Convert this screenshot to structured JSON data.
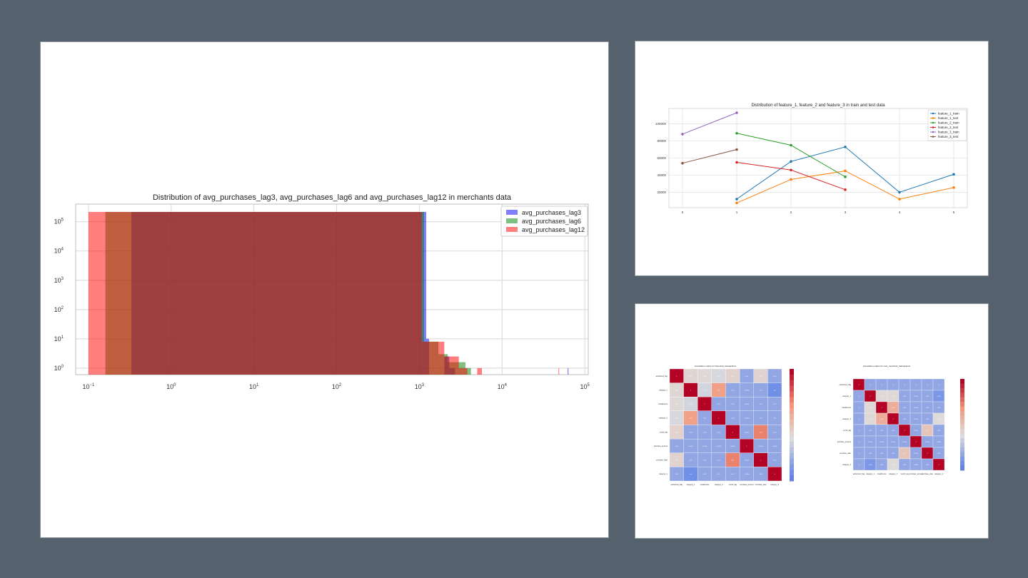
{
  "colors": {
    "background": "#56616e",
    "blue": "#1f77b4",
    "orange": "#ff7f0e",
    "green": "#2ca02c",
    "red": "#d62728",
    "purple": "#9467bd",
    "brown": "#8c564b"
  },
  "chart_data": [
    {
      "type": "histogram",
      "title": "Distribution of avg_purchases_lag3, avg_purchases_lag6 and avg_purchases_lag12 in merchants data",
      "xlabel": "",
      "ylabel": "",
      "x_scale": "log",
      "y_scale": "log",
      "xlim": [
        0.07,
        110000
      ],
      "ylim": [
        0.6,
        400000
      ],
      "x_ticks": [
        {
          "value": 0.1,
          "base": "10",
          "exp": "−1"
        },
        {
          "value": 1,
          "base": "10",
          "exp": "0"
        },
        {
          "value": 10,
          "base": "10",
          "exp": "1"
        },
        {
          "value": 100,
          "base": "10",
          "exp": "2"
        },
        {
          "value": 1000,
          "base": "10",
          "exp": "3"
        },
        {
          "value": 10000,
          "base": "10",
          "exp": "4"
        },
        {
          "value": 100000,
          "base": "10",
          "exp": "5"
        }
      ],
      "y_ticks": [
        {
          "value": 1,
          "base": "10",
          "exp": "0"
        },
        {
          "value": 10,
          "base": "10",
          "exp": "1"
        },
        {
          "value": 100,
          "base": "10",
          "exp": "2"
        },
        {
          "value": 1000,
          "base": "10",
          "exp": "3"
        },
        {
          "value": 10000,
          "base": "10",
          "exp": "4"
        },
        {
          "value": 100000,
          "base": "10",
          "exp": "5"
        }
      ],
      "grid": true,
      "legend_position": "top-right",
      "series": [
        {
          "name": "avg_purchases_lag3",
          "color": "#0000ff",
          "opacity": 0.5,
          "bins": [
            {
              "x0": 0.33,
              "x1": 1210,
              "count": 330000
            },
            {
              "x0": 1210,
              "x1": 1310,
              "count": 10
            },
            {
              "x0": 2000,
              "x1": 2300,
              "count": 2.5
            },
            {
              "x0": 2300,
              "x1": 2700,
              "count": 1
            },
            {
              "x0": 62000,
              "x1": 63500,
              "count": 1
            }
          ]
        },
        {
          "name": "avg_purchases_lag6",
          "color": "#008000",
          "opacity": 0.5,
          "bins": [
            {
              "x0": 0.16,
              "x1": 1140,
              "count": 330000
            },
            {
              "x0": 1140,
              "x1": 1700,
              "count": 8
            },
            {
              "x0": 1700,
              "x1": 2200,
              "count": 3
            },
            {
              "x0": 2200,
              "x1": 3600,
              "count": 1.6
            },
            {
              "x0": 3600,
              "x1": 4200,
              "count": 1
            }
          ]
        },
        {
          "name": "avg_purchases_lag12",
          "color": "#ff0000",
          "opacity": 0.5,
          "bins": [
            {
              "x0": 0.1,
              "x1": 1070,
              "count": 330000
            },
            {
              "x0": 1070,
              "x1": 2000,
              "count": 8
            },
            {
              "x0": 2000,
              "x1": 3000,
              "count": 2.5
            },
            {
              "x0": 3000,
              "x1": 3800,
              "count": 1
            },
            {
              "x0": 5000,
              "x1": 5700,
              "count": 1
            },
            {
              "x0": 48000,
              "x1": 49000,
              "count": 1
            }
          ]
        }
      ]
    },
    {
      "type": "line",
      "title": "Distribution of feature_1, feature_2 and feature_3 in train and test data",
      "xlabel": "",
      "ylabel": "",
      "x_ticks": [
        "0",
        "1",
        "2",
        "3",
        "4",
        "5"
      ],
      "y_ticks": [
        "20000",
        "40000",
        "60000",
        "80000",
        "100000"
      ],
      "ylim": [
        2000,
        118000
      ],
      "xlim": [
        -0.25,
        5.25
      ],
      "grid": true,
      "legend_position": "top-right",
      "series": [
        {
          "name": "feature_1_train",
          "color": "#1f77b4",
          "x": [
            1,
            2,
            3,
            4,
            5
          ],
          "y": [
            12000,
            56000,
            73000,
            20000,
            41000
          ]
        },
        {
          "name": "feature_1_test",
          "color": "#ff7f0e",
          "x": [
            1,
            2,
            3,
            4,
            5
          ],
          "y": [
            7500,
            35000,
            45000,
            12000,
            25500
          ]
        },
        {
          "name": "feature_2_train",
          "color": "#2ca02c",
          "x": [
            1,
            2,
            3
          ],
          "y": [
            89000,
            75000,
            38000
          ]
        },
        {
          "name": "feature_2_test",
          "color": "#d62728",
          "x": [
            1,
            2,
            3
          ],
          "y": [
            55000,
            46000,
            23000
          ]
        },
        {
          "name": "feature_3_train",
          "color": "#9467bd",
          "x": [
            0,
            1
          ],
          "y": [
            88000,
            113000
          ]
        },
        {
          "name": "feature_3_test",
          "color": "#8c564b",
          "x": [
            0,
            1
          ],
          "y": [
            54000,
            70000
          ]
        }
      ]
    },
    {
      "type": "heatmap",
      "title": "Correlation matrix for historical_transactions",
      "colormap": "coolwarm",
      "labels": [
        "authorized_flag",
        "category_1",
        "installments",
        "category_3",
        "month_lag",
        "purchase_amount",
        "purchase_date",
        "category_2"
      ],
      "matrix": [
        [
          1,
          0.05,
          0.03,
          -0.03,
          0.08,
          -0.01,
          0.07,
          -0.01
        ],
        [
          0.05,
          1,
          -0.05,
          0.42,
          -0.01,
          -0.0001,
          0.01,
          -0.5
        ],
        [
          0.03,
          -0.05,
          1,
          0.01,
          -0.01,
          0.0003,
          -0.01,
          -0.01
        ],
        [
          -0.03,
          0.42,
          0.01,
          1,
          -0.01,
          -0.0002,
          -0.01,
          0.01
        ],
        [
          0.08,
          -0.01,
          -0.01,
          -0.01,
          1,
          0.0001,
          0.57,
          -0.01
        ],
        [
          -0.01,
          -0.0001,
          0.0003,
          -0.0002,
          0.0001,
          1,
          0.0003,
          -0.0001
        ],
        [
          0.07,
          0.01,
          -0.01,
          -0.01,
          0.57,
          0.0003,
          1,
          -0.01
        ],
        [
          -0.01,
          -0.5,
          -0.01,
          0.01,
          -0.01,
          -0.0001,
          -0.01,
          1
        ]
      ]
    },
    {
      "type": "heatmap",
      "title": "Correlation matrix for new_merchant_transactions",
      "colormap": "coolwarm",
      "labels": [
        "authorized_flag",
        "category_1",
        "installments",
        "category_3",
        "month_lag",
        "purchase_amount",
        "purchase_date",
        "category_2"
      ],
      "matrix": [
        [
          1,
          0,
          0,
          0,
          0,
          0,
          0,
          0
        ],
        [
          0,
          1,
          0.03,
          0.03,
          -0.01,
          0.0001,
          -0.01,
          -0.45
        ],
        [
          0,
          0.03,
          1,
          0.33,
          -0.01,
          0.0003,
          -0.01,
          -0.01
        ],
        [
          0,
          0.03,
          0.33,
          1,
          -0.01,
          0.0001,
          -0.01,
          0.02
        ],
        [
          0,
          -0.01,
          -0.01,
          -0.01,
          1,
          0.0001,
          0.17,
          -0.01
        ],
        [
          0,
          0.0001,
          0.0003,
          0.0001,
          0.0001,
          1,
          0.0001,
          -0.0001
        ],
        [
          0,
          -0.01,
          -0.01,
          -0.01,
          0.17,
          0.0001,
          1,
          -0.01
        ],
        [
          0,
          -0.45,
          -0.01,
          0.02,
          -0.01,
          -0.0001,
          -0.01,
          1
        ]
      ]
    }
  ]
}
